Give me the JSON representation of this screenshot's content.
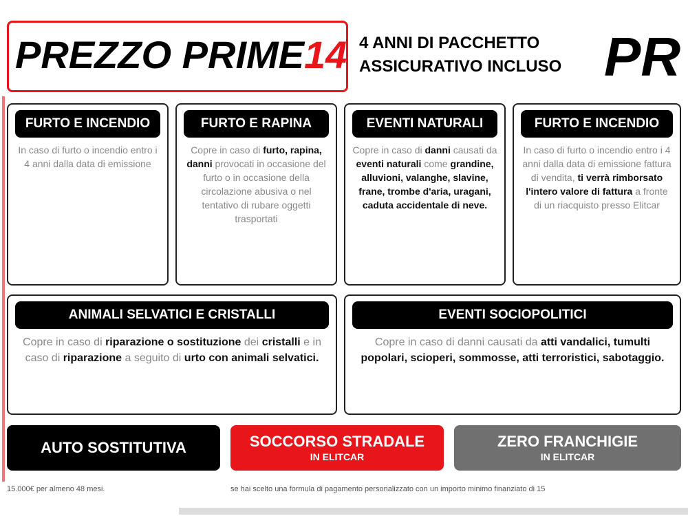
{
  "header": {
    "title": "PREZZO PRIME",
    "title_number": "14",
    "subtitle_line1": "4 ANNI DI PACCHETTO",
    "subtitle_line2": "ASSICURATIVO INCLUSO",
    "right_title": "PR"
  },
  "cards": [
    {
      "title": "FURTO E INCENDIO",
      "text": [
        {
          "t": "In caso di furto o incendio entro i 4 anni dalla data di emissione",
          "b": false
        }
      ]
    },
    {
      "title": "FURTO E RAPINA",
      "text": [
        {
          "t": "Copre in caso di ",
          "b": false
        },
        {
          "t": "furto, rapina, danni",
          "b": true
        },
        {
          "t": " provocati in occasione del furto o in occasione della circolazione abusiva o nel tentativo di rubare oggetti trasportati",
          "b": false
        }
      ]
    },
    {
      "title": "EVENTI NATURALI",
      "text": [
        {
          "t": "Copre in caso di ",
          "b": false
        },
        {
          "t": "danni",
          "b": true
        },
        {
          "t": " causati da ",
          "b": false
        },
        {
          "t": "eventi naturali",
          "b": true
        },
        {
          "t": " come ",
          "b": false
        },
        {
          "t": "grandine, alluvioni, valanghe, slavine, frane, trombe d'aria, uragani, caduta accidentale di neve.",
          "b": true
        }
      ]
    },
    {
      "title": "FURTO E INCENDIO",
      "text": [
        {
          "t": "In caso di furto o incendio entro i 4 anni dalla data di emissione fattura di vendita, ",
          "b": false
        },
        {
          "t": "ti verrà rimborsato l'intero valore di fattura",
          "b": true
        },
        {
          "t": " a fronte di un riacquisto presso Elitcar",
          "b": false
        }
      ]
    },
    {
      "title": "ANIMALI SELVATICI E CRISTALLI",
      "text": [
        {
          "t": "Copre in caso di ",
          "b": false
        },
        {
          "t": "riparazione o sostituzione",
          "b": true
        },
        {
          "t": " dei ",
          "b": false
        },
        {
          "t": "cristalli",
          "b": true
        },
        {
          "t": " e in caso di ",
          "b": false
        },
        {
          "t": "riparazione",
          "b": true
        },
        {
          "t": " a seguito di ",
          "b": false
        },
        {
          "t": "urto con animali selvatici.",
          "b": true
        }
      ]
    },
    {
      "title": "EVENTI SOCIOPOLITICI",
      "text": [
        {
          "t": "Copre in caso di danni causati da ",
          "b": false
        },
        {
          "t": "atti vandalici, tumulti popolari, scioperi, sommosse, atti terroristici, sabotaggio.",
          "b": true
        }
      ]
    }
  ],
  "badges": [
    {
      "title": "AUTO SOSTITUTIVA",
      "sub": ""
    },
    {
      "title": "SOCCORSO STRADALE",
      "sub": "IN ELITCAR"
    },
    {
      "title": "ZERO FRANCHIGIE",
      "sub": "IN ELITCAR"
    }
  ],
  "footnotes": {
    "left": "15.000€ per almeno 48 mesi.",
    "right": "se hai scelto una formula di pagamento personalizzato con un importo minimo finanziato di 15"
  },
  "colors": {
    "accent": "#e8151b",
    "gray": "#707070"
  }
}
